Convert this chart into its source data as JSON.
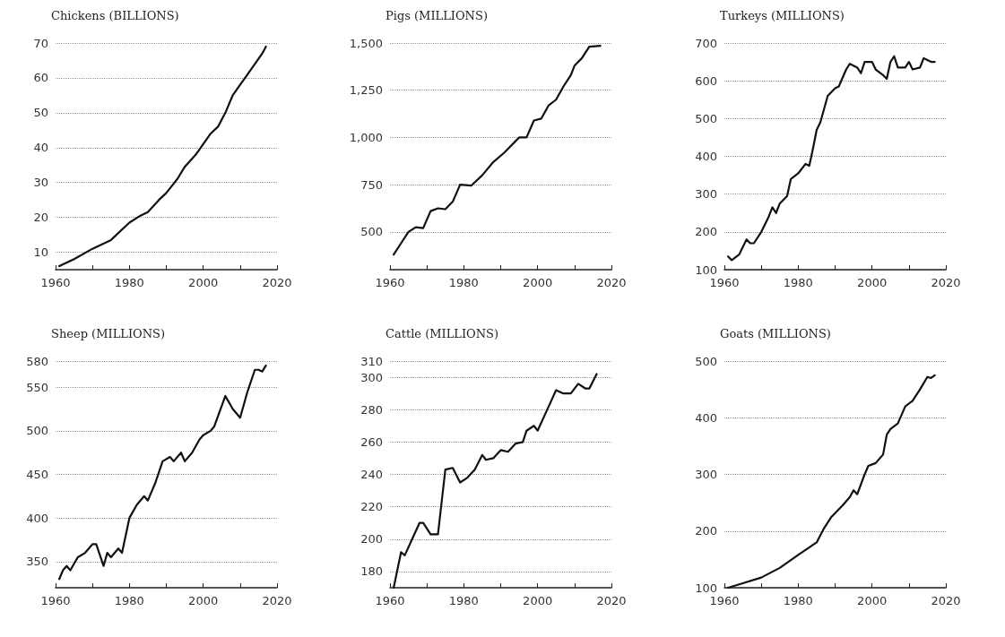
{
  "chart_data": [
    {
      "type": "line",
      "title": "Chickens (BILLIONS)",
      "xlim": [
        1960,
        2020
      ],
      "xticks": [
        1960,
        {
          "value": 1970,
          "label": null
        },
        1980,
        {
          "value": 1990,
          "label": null
        },
        2000,
        {
          "value": 2010,
          "label": null
        },
        2020
      ],
      "ylim": [
        5,
        70
      ],
      "yticks": [
        10,
        20,
        30,
        40,
        50,
        60,
        70
      ],
      "grid": "y",
      "marker": "none",
      "line_style": "solid",
      "series": [
        {
          "color": "#111111",
          "x": [
            1961,
            1965,
            1970,
            1975,
            1980,
            1983,
            1985,
            1988,
            1990,
            1993,
            1995,
            1998,
            2000,
            2002,
            2004,
            2006,
            2008,
            2010,
            2012,
            2014,
            2016,
            2017
          ],
          "values": [
            6,
            8,
            11,
            13.5,
            18.5,
            20.5,
            21.5,
            25,
            27,
            31,
            34.5,
            38,
            41,
            44,
            46,
            50,
            55,
            58,
            61,
            64,
            67,
            69
          ]
        }
      ]
    },
    {
      "type": "line",
      "title": "Pigs (MILLIONS)",
      "xlim": [
        1960,
        2020
      ],
      "xticks": [
        1960,
        {
          "value": 1970,
          "label": null
        },
        1980,
        {
          "value": 1990,
          "label": null
        },
        2000,
        {
          "value": 2010,
          "label": null
        },
        2020
      ],
      "ylim": [
        300,
        1500
      ],
      "yticks": [
        500,
        750,
        {
          "value": 1000,
          "label": "1,000"
        },
        {
          "value": 1250,
          "label": "1,250"
        },
        {
          "value": 1500,
          "label": "1,500"
        }
      ],
      "grid": "y",
      "marker": "none",
      "line_style": "solid",
      "series": [
        {
          "color": "#111111",
          "x": [
            1961,
            1963,
            1965,
            1967,
            1969,
            1971,
            1973,
            1975,
            1977,
            1979,
            1982,
            1985,
            1988,
            1991,
            1994,
            1995,
            1997,
            1999,
            2001,
            2003,
            2005,
            2007,
            2009,
            2010,
            2012,
            2014,
            2017
          ],
          "values": [
            380,
            440,
            500,
            525,
            520,
            610,
            625,
            620,
            660,
            750,
            745,
            800,
            870,
            920,
            980,
            1000,
            1000,
            1090,
            1100,
            1170,
            1200,
            1270,
            1330,
            1380,
            1420,
            1480,
            1485
          ]
        }
      ]
    },
    {
      "type": "line",
      "title": "Turkeys (MILLIONS)",
      "xlim": [
        1960,
        2020
      ],
      "xticks": [
        1960,
        {
          "value": 1970,
          "label": null
        },
        1980,
        {
          "value": 1990,
          "label": null
        },
        2000,
        {
          "value": 2010,
          "label": null
        },
        2020
      ],
      "ylim": [
        100,
        700
      ],
      "yticks": [
        100,
        200,
        300,
        400,
        500,
        600,
        700
      ],
      "grid": "y",
      "marker": "none",
      "line_style": "solid",
      "series": [
        {
          "color": "#111111",
          "x": [
            1961,
            1962,
            1964,
            1966,
            1967,
            1968,
            1970,
            1972,
            1973,
            1974,
            1975,
            1977,
            1978,
            1980,
            1982,
            1983,
            1984,
            1985,
            1986,
            1988,
            1990,
            1991,
            1993,
            1994,
            1996,
            1997,
            1998,
            2000,
            2001,
            2003,
            2004,
            2005,
            2006,
            2007,
            2009,
            2010,
            2011,
            2013,
            2014,
            2015,
            2016,
            2017
          ],
          "values": [
            135,
            125,
            140,
            180,
            170,
            170,
            200,
            240,
            265,
            250,
            275,
            295,
            340,
            355,
            380,
            375,
            420,
            470,
            490,
            560,
            580,
            585,
            630,
            645,
            635,
            620,
            650,
            650,
            630,
            615,
            605,
            650,
            665,
            635,
            635,
            650,
            630,
            635,
            660,
            655,
            650,
            650
          ]
        }
      ]
    },
    {
      "type": "line",
      "title": "Sheep (MILLIONS)",
      "xlim": [
        1960,
        2020
      ],
      "xticks": [
        1960,
        {
          "value": 1970,
          "label": null
        },
        1980,
        {
          "value": 1990,
          "label": null
        },
        2000,
        {
          "value": 2010,
          "label": null
        },
        2020
      ],
      "ylim": [
        320,
        580
      ],
      "yticks": [
        350,
        400,
        450,
        500,
        550,
        580
      ],
      "grid": "y",
      "marker": "none",
      "line_style": "solid",
      "series": [
        {
          "color": "#111111",
          "x": [
            1961,
            1962,
            1963,
            1964,
            1966,
            1968,
            1970,
            1971,
            1973,
            1974,
            1975,
            1977,
            1978,
            1980,
            1982,
            1984,
            1985,
            1987,
            1989,
            1991,
            1992,
            1994,
            1995,
            1997,
            1999,
            2000,
            2002,
            2003,
            2006,
            2008,
            2010,
            2012,
            2014,
            2015,
            2016,
            2017
          ],
          "values": [
            330,
            340,
            345,
            340,
            355,
            360,
            370,
            370,
            345,
            360,
            355,
            365,
            360,
            400,
            415,
            425,
            420,
            440,
            465,
            470,
            465,
            475,
            465,
            475,
            490,
            495,
            500,
            505,
            540,
            525,
            515,
            545,
            570,
            570,
            568,
            575
          ]
        }
      ]
    },
    {
      "type": "line",
      "title": "Cattle (MILLIONS)",
      "xlim": [
        1960,
        2020
      ],
      "xticks": [
        1960,
        {
          "value": 1970,
          "label": null
        },
        1980,
        {
          "value": 1990,
          "label": null
        },
        2000,
        {
          "value": 2010,
          "label": null
        },
        2020
      ],
      "ylim": [
        170,
        310
      ],
      "yticks": [
        180,
        200,
        220,
        240,
        260,
        280,
        300,
        310
      ],
      "grid": "y",
      "marker": "none",
      "line_style": "solid",
      "series": [
        {
          "color": "#111111",
          "x": [
            1961,
            1963,
            1964,
            1966,
            1968,
            1969,
            1971,
            1973,
            1975,
            1977,
            1979,
            1981,
            1983,
            1985,
            1986,
            1988,
            1990,
            1992,
            1994,
            1996,
            1997,
            1999,
            2000,
            2003,
            2005,
            2007,
            2009,
            2011,
            2013,
            2014,
            2016
          ],
          "values": [
            170,
            192,
            190,
            200,
            210,
            210,
            203,
            203,
            243,
            244,
            235,
            238,
            243,
            252,
            249,
            250,
            255,
            254,
            259,
            260,
            267,
            270,
            267,
            282,
            292,
            290,
            290,
            296,
            293,
            293,
            302
          ]
        }
      ]
    },
    {
      "type": "line",
      "title": "Goats (MILLIONS)",
      "xlim": [
        1960,
        2020
      ],
      "xticks": [
        1960,
        {
          "value": 1970,
          "label": null
        },
        1980,
        {
          "value": 1990,
          "label": null
        },
        2000,
        {
          "value": 2010,
          "label": null
        },
        2020
      ],
      "ylim": [
        100,
        500
      ],
      "yticks": [
        100,
        200,
        300,
        400,
        500
      ],
      "grid": "y",
      "marker": "none",
      "line_style": "solid",
      "series": [
        {
          "color": "#111111",
          "x": [
            1961,
            1965,
            1970,
            1975,
            1980,
            1985,
            1987,
            1989,
            1992,
            1994,
            1995,
            1996,
            1998,
            1999,
            2001,
            2003,
            2004,
            2005,
            2007,
            2009,
            2011,
            2013,
            2015,
            2016,
            2017
          ],
          "values": [
            100,
            108,
            118,
            135,
            158,
            180,
            205,
            225,
            245,
            260,
            272,
            265,
            300,
            315,
            320,
            335,
            370,
            380,
            390,
            420,
            430,
            450,
            472,
            470,
            475
          ]
        }
      ]
    }
  ]
}
